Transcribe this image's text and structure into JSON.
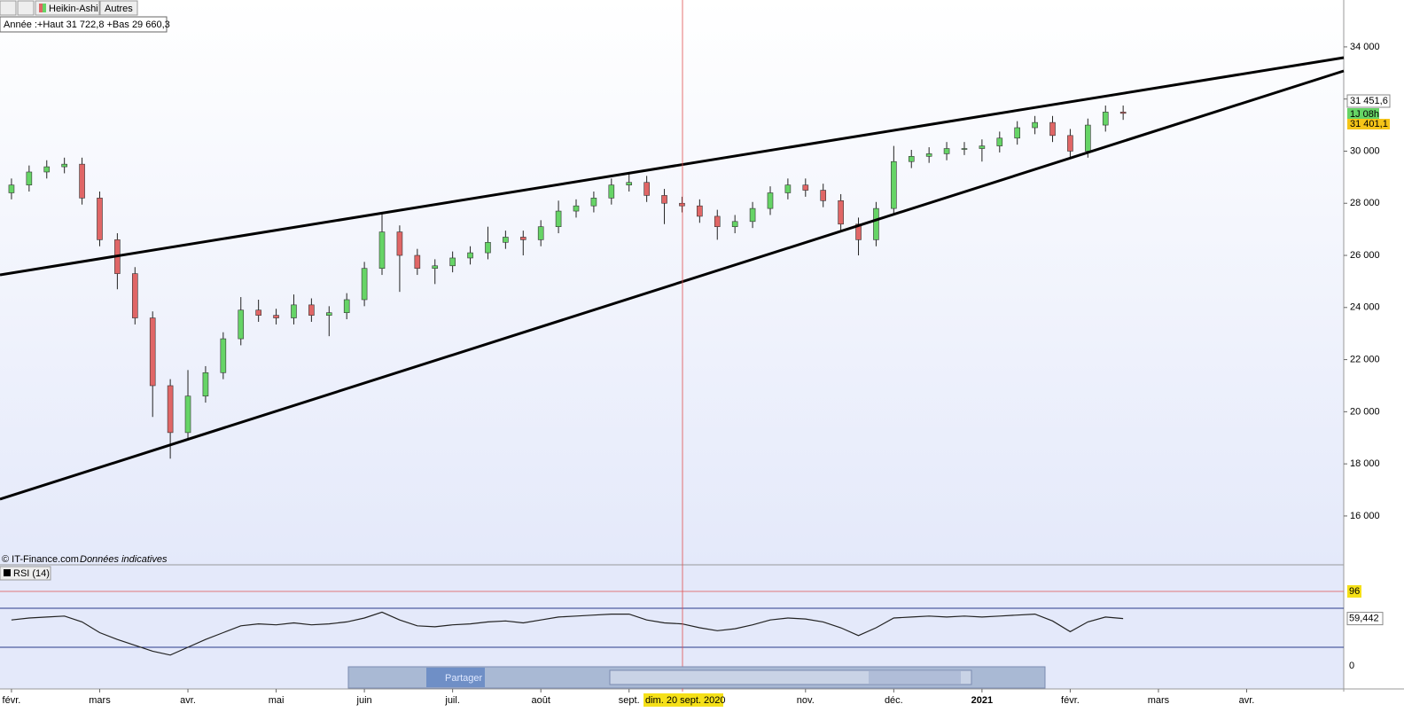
{
  "toolbar": {
    "chart_type": "Heikin-Ashi",
    "others": "Autres",
    "info": "Année :+Haut 31 722,8 +Bas 29 660,3",
    "share": "Partager"
  },
  "footer": {
    "copyright": "© IT-Finance.com",
    "note": "Données indicatives"
  },
  "price_labels": {
    "ask": "31 451,6",
    "countdown": "1J 08h",
    "bid": "31 401,1"
  },
  "crosshair": {
    "date": "dim. 20 sept. 2020",
    "rsi_value": "96"
  },
  "chart_data": {
    "type": "candlestick",
    "xlim": [
      -0.13,
      15.1
    ],
    "ylim": [
      14160,
      35800
    ],
    "xticks": [
      {
        "value": 0,
        "label": "févr."
      },
      {
        "value": 1,
        "label": "mars"
      },
      {
        "value": 2,
        "label": "avr."
      },
      {
        "value": 3,
        "label": "mai"
      },
      {
        "value": 4,
        "label": "juin"
      },
      {
        "value": 5,
        "label": "juil."
      },
      {
        "value": 6,
        "label": "août"
      },
      {
        "value": 7,
        "label": "sept."
      },
      {
        "value": 9,
        "label": "nov."
      },
      {
        "value": 10,
        "label": "déc."
      },
      {
        "value": 11,
        "label": "2021"
      },
      {
        "value": 12,
        "label": "févr."
      },
      {
        "value": 13,
        "label": "mars"
      },
      {
        "value": 14,
        "label": "avr."
      }
    ],
    "yticks": [
      {
        "value": 16000,
        "label": "16 000"
      },
      {
        "value": 18000,
        "label": "18 000"
      },
      {
        "value": 20000,
        "label": "20 000"
      },
      {
        "value": 22000,
        "label": "22 000"
      },
      {
        "value": 24000,
        "label": "24 000"
      },
      {
        "value": 26000,
        "label": "26 000"
      },
      {
        "value": 28000,
        "label": "28 000"
      },
      {
        "value": 30000,
        "label": "30 000"
      },
      {
        "value": 32000,
        "label": "32 000"
      },
      {
        "value": 34000,
        "label": "34 000"
      }
    ],
    "up_color": "#66d466",
    "down_color": "#e06666",
    "x": [
      0,
      0.2,
      0.4,
      0.6,
      0.8,
      1,
      1.2,
      1.4,
      1.6,
      1.8,
      2,
      2.2,
      2.4,
      2.6,
      2.8,
      3,
      3.2,
      3.4,
      3.6,
      3.8,
      4,
      4.2,
      4.4,
      4.6,
      4.8,
      5,
      5.2,
      5.4,
      5.6,
      5.8,
      6,
      6.2,
      6.4,
      6.6,
      6.8,
      7,
      7.2,
      7.4,
      7.6,
      7.8,
      8,
      8.2,
      8.4,
      8.6,
      8.8,
      9,
      9.2,
      9.4,
      9.6,
      9.8,
      10,
      10.2,
      10.4,
      10.6,
      10.8,
      11,
      11.2,
      11.4,
      11.6,
      11.8,
      12,
      12.2,
      12.4,
      12.6
    ],
    "open": [
      28400,
      28700,
      29200,
      29400,
      29500,
      28200,
      26600,
      25300,
      23600,
      21000,
      19200,
      20600,
      21500,
      22800,
      23900,
      23700,
      23600,
      24100,
      23700,
      23800,
      24300,
      25500,
      26900,
      26000,
      25500,
      25600,
      25900,
      26100,
      26500,
      26700,
      26600,
      27100,
      27700,
      27900,
      28200,
      28700,
      28800,
      28300,
      28000,
      27900,
      27500,
      27100,
      27300,
      27800,
      28400,
      28700,
      28500,
      28100,
      27200,
      26600,
      27800,
      29600,
      29800,
      29900,
      30100,
      30100,
      30200,
      30500,
      30900,
      31100,
      30600,
      30000,
      31000,
      31500
    ],
    "high": [
      28950,
      29450,
      29650,
      29750,
      29750,
      28450,
      26850,
      25550,
      23850,
      21250,
      21600,
      21750,
      23050,
      24400,
      24300,
      23950,
      24500,
      24350,
      24050,
      24550,
      25750,
      27600,
      27150,
      26250,
      25850,
      26150,
      26350,
      27100,
      26950,
      26950,
      27350,
      28100,
      28150,
      28450,
      28950,
      29200,
      29050,
      28550,
      28250,
      28150,
      27750,
      27550,
      28050,
      28650,
      28950,
      28950,
      28750,
      28350,
      27450,
      28050,
      30200,
      30050,
      30150,
      30350,
      30350,
      30450,
      30750,
      31150,
      31350,
      31350,
      30850,
      31250,
      31750,
      31750
    ],
    "low": [
      28150,
      28450,
      28950,
      29150,
      27950,
      26350,
      24700,
      23350,
      19800,
      18200,
      18950,
      20350,
      21250,
      22550,
      23450,
      23350,
      23350,
      23450,
      22900,
      23550,
      24050,
      25250,
      24600,
      25250,
      24900,
      25350,
      25650,
      25850,
      26250,
      26000,
      26350,
      26850,
      27450,
      27650,
      27950,
      28450,
      28050,
      27200,
      27650,
      27250,
      26600,
      26850,
      27050,
      27550,
      28150,
      28250,
      27850,
      26950,
      26000,
      26350,
      27550,
      29350,
      29550,
      29650,
      29850,
      29600,
      29950,
      30250,
      30650,
      30350,
      29750,
      29750,
      30750,
      31200
    ],
    "close": [
      28700,
      29200,
      29400,
      29500,
      28200,
      26600,
      25300,
      23600,
      21000,
      19200,
      20600,
      21500,
      22800,
      23900,
      23700,
      23600,
      24100,
      23700,
      23800,
      24300,
      25500,
      26900,
      26000,
      25500,
      25600,
      25900,
      26100,
      26500,
      26700,
      26600,
      27100,
      27700,
      27900,
      28200,
      28700,
      28800,
      28300,
      28000,
      27900,
      27500,
      27100,
      27300,
      27800,
      28400,
      28700,
      28500,
      28100,
      27200,
      26600,
      27800,
      29600,
      29800,
      29900,
      30100,
      30100,
      30200,
      30500,
      30900,
      31100,
      30600,
      30000,
      31000,
      31500,
      31450
    ],
    "rsi": {
      "name": "RSI (14)",
      "ylim": [
        0,
        100
      ],
      "yticks": [
        0
      ],
      "levels": [
        30,
        70
      ],
      "color": "#222",
      "values": [
        58,
        60,
        61,
        62,
        56,
        45,
        38,
        32,
        26,
        22,
        30,
        38,
        45,
        52,
        54,
        53,
        55,
        53,
        54,
        56,
        60,
        66,
        58,
        52,
        51,
        53,
        54,
        56,
        57,
        55,
        58,
        61,
        62,
        63,
        64,
        64,
        58,
        55,
        54,
        50,
        47,
        49,
        53,
        58,
        60,
        59,
        56,
        50,
        42,
        50,
        60,
        61,
        62,
        61,
        62,
        61,
        62,
        63,
        64,
        57,
        46,
        56,
        61,
        59.442
      ],
      "current": {
        "value": 59.442,
        "label": "59,442"
      }
    }
  }
}
